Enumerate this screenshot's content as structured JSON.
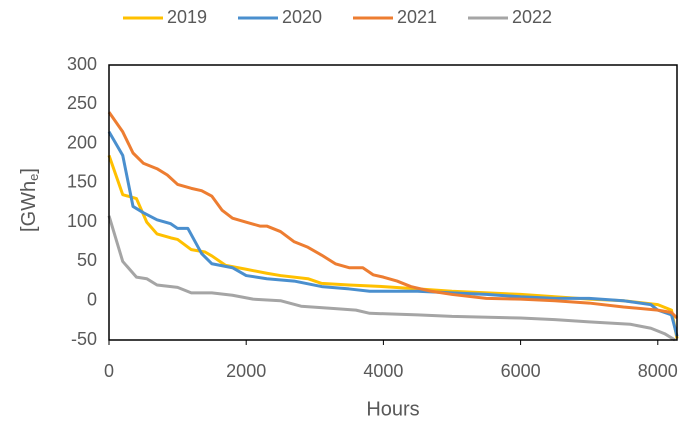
{
  "chart_data": {
    "type": "line",
    "x_label": "Hours",
    "y_label_parts": [
      "[GWh",
      "e",
      "]"
    ],
    "xlim": [
      0,
      8280
    ],
    "xticks": [
      0,
      2000,
      4000,
      6000,
      8000
    ],
    "ylim": [
      -50,
      300
    ],
    "yticks": [
      -50,
      0,
      50,
      100,
      150,
      200,
      250,
      300
    ],
    "legend": "top",
    "grid": false,
    "series": [
      {
        "name": "2019",
        "color": "#ffc000",
        "x": [
          0,
          200,
          400,
          550,
          700,
          900,
          1000,
          1200,
          1400,
          1500,
          1700,
          2000,
          2300,
          2500,
          2900,
          3100,
          3500,
          4000,
          4500,
          5000,
          6000,
          6500,
          7000,
          7500,
          8000,
          8200,
          8280
        ],
        "values": [
          185,
          135,
          130,
          100,
          85,
          80,
          78,
          65,
          62,
          57,
          45,
          40,
          35,
          32,
          28,
          22,
          20,
          18,
          15,
          12,
          8,
          5,
          2,
          0,
          -5,
          -12,
          -48
        ]
      },
      {
        "name": "2020",
        "color": "#4a8fce",
        "x": [
          0,
          200,
          350,
          500,
          700,
          900,
          1000,
          1150,
          1350,
          1500,
          1800,
          2000,
          2300,
          2700,
          3100,
          3500,
          3800,
          4500,
          5000,
          5500,
          6000,
          6500,
          7000,
          7500,
          7900,
          8000,
          8200,
          8280
        ],
        "values": [
          215,
          185,
          120,
          112,
          103,
          98,
          92,
          92,
          60,
          47,
          42,
          32,
          28,
          25,
          18,
          15,
          12,
          12,
          10,
          8,
          5,
          3,
          3,
          0,
          -5,
          -12,
          -18,
          -45
        ]
      },
      {
        "name": "2021",
        "color": "#ed7d31",
        "x": [
          0,
          200,
          350,
          500,
          700,
          850,
          1000,
          1200,
          1350,
          1500,
          1650,
          1800,
          2000,
          2200,
          2300,
          2500,
          2700,
          2900,
          3100,
          3300,
          3500,
          3700,
          3850,
          4000,
          4200,
          4400,
          4700,
          5000,
          5500,
          6000,
          6500,
          7000,
          7500,
          8000,
          8200,
          8280
        ],
        "values": [
          240,
          215,
          188,
          175,
          168,
          160,
          148,
          143,
          140,
          133,
          115,
          105,
          100,
          95,
          95,
          88,
          75,
          68,
          58,
          47,
          42,
          42,
          33,
          30,
          25,
          18,
          12,
          8,
          3,
          2,
          0,
          -3,
          -8,
          -12,
          -15,
          -22
        ]
      },
      {
        "name": "2022",
        "color": "#a5a5a5",
        "x": [
          0,
          200,
          400,
          550,
          700,
          1000,
          1200,
          1500,
          1800,
          2100,
          2500,
          2800,
          3300,
          3600,
          3800,
          4500,
          5000,
          6000,
          6500,
          7000,
          7600,
          7900,
          8100,
          8250
        ],
        "values": [
          108,
          50,
          30,
          28,
          20,
          17,
          10,
          10,
          7,
          2,
          0,
          -7,
          -10,
          -12,
          -16,
          -18,
          -20,
          -22,
          -24,
          -27,
          -30,
          -35,
          -42,
          -50
        ]
      }
    ]
  }
}
